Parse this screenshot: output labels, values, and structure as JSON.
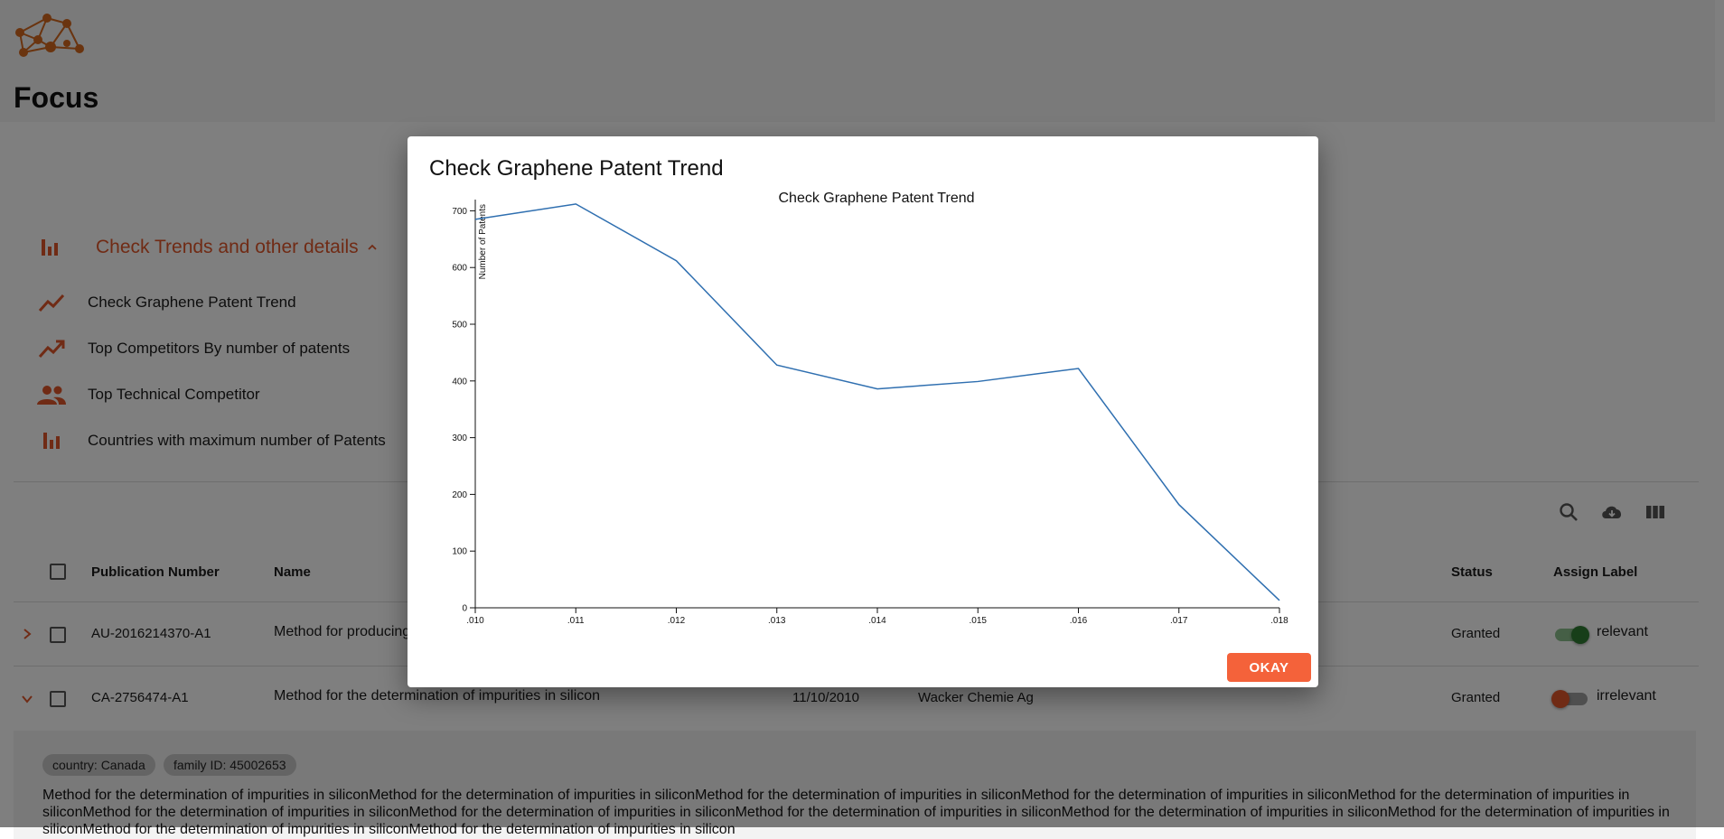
{
  "app": {
    "title": "Focus"
  },
  "trends": {
    "header": "Check Trends and other details",
    "items": [
      {
        "label": "Check Graphene Patent Trend",
        "icon": "trending-up-icon"
      },
      {
        "label": "Top Competitors By number of patents",
        "icon": "trending-up-icon"
      },
      {
        "label": "Top Technical Competitor",
        "icon": "people-icon"
      },
      {
        "label": "Countries with maximum number of Patents",
        "icon": "bar-chart-icon"
      }
    ]
  },
  "toolbar": {
    "icons": [
      "search-icon",
      "cloud-download-icon",
      "view-columns-icon"
    ]
  },
  "table": {
    "headers": {
      "publication_number": "Publication Number",
      "name": "Name",
      "status": "Status",
      "assign_label": "Assign Label"
    },
    "rows": [
      {
        "publication_number": "AU-2016214370-A1",
        "name": "Method for producing",
        "date": "",
        "assignee": "",
        "status": "Granted",
        "label": "relevant",
        "toggle_on": true
      },
      {
        "publication_number": "CA-2756474-A1",
        "name": "Method for the determination of impurities in silicon",
        "date": "11/10/2010",
        "assignee": "Wacker Chemie Ag",
        "status": "Granted",
        "label": "irrelevant",
        "toggle_on": false
      }
    ]
  },
  "detail": {
    "country_chip": "country: Canada",
    "family_chip": "family ID: 45002653",
    "description": "Method for the determination of impurities in siliconMethod for the determination of impurities in siliconMethod for the determination of impurities in siliconMethod for the determination of impurities in siliconMethod for the determination of impurities in siliconMethod for the determination of impurities in siliconMethod for the determination of impurities in siliconMethod for the determination of impurities in siliconMethod for the determination of impurities in siliconMethod for the determination of impurities in siliconMethod for the determination of impurities in siliconMethod for the determination of impurities in silicon"
  },
  "dialog": {
    "title": "Check Graphene Patent Trend",
    "okay_label": "OKAY"
  },
  "colors": {
    "accent": "#e0562a",
    "button": "#f4623a",
    "line": "#2f6fb0",
    "toggle_on": "#2e7d32"
  },
  "chart_data": {
    "type": "line",
    "title": "Check Graphene Patent Trend",
    "xlabel": "",
    "ylabel": "Number of Patents",
    "x": [
      ".010",
      ".011",
      ".012",
      ".013",
      ".014",
      ".015",
      ".016",
      ".017",
      ".018"
    ],
    "values": [
      685,
      712,
      612,
      428,
      386,
      399,
      422,
      182,
      13
    ],
    "yticks": [
      0,
      100,
      200,
      300,
      400,
      500,
      600,
      700
    ],
    "ylim": [
      0,
      715
    ],
    "grid": false
  }
}
